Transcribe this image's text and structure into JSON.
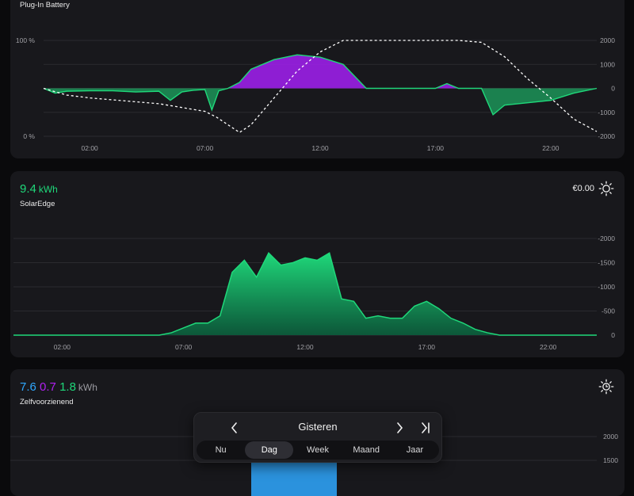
{
  "battery": {
    "title": "Plug-In Battery",
    "left_ticks": [
      "100 %",
      "0 %"
    ],
    "right_ticks": [
      "2000",
      "1000",
      "0",
      "-1000",
      "-2000"
    ],
    "x_ticks": [
      "02:00",
      "07:00",
      "12:00",
      "17:00",
      "22:00"
    ],
    "colors": {
      "discharge": "#9b1fe8",
      "charge": "#1fd87a",
      "soc": "#ffffff"
    }
  },
  "solar": {
    "value": "9.4",
    "unit": "kWh",
    "name": "SolarEdge",
    "price": "€0.00",
    "icon": "sun-icon",
    "right_ticks": [
      "-2000",
      "-1500",
      "-1000",
      "-500",
      "0"
    ],
    "x_ticks": [
      "02:00",
      "07:00",
      "12:00",
      "17:00",
      "22:00"
    ],
    "color": "#1fd87a"
  },
  "self": {
    "values": [
      "7.6",
      "0.7",
      "1.8"
    ],
    "value_colors": [
      "#2fa8ff",
      "#b020f0",
      "#1fd87a"
    ],
    "unit": "kWh",
    "name": "Zelfvoorzienend",
    "icon": "sun-clock-icon",
    "right_ticks": [
      "2000",
      "1500"
    ]
  },
  "nav": {
    "label": "Gisteren",
    "tabs": [
      "Nu",
      "Dag",
      "Week",
      "Maand",
      "Jaar"
    ],
    "active_tab": "Dag"
  },
  "chart_data": [
    {
      "type": "area",
      "title": "Plug-In Battery",
      "x_range": [
        "00:00",
        "24:00"
      ],
      "y_left_range": [
        0,
        100
      ],
      "y_right_range": [
        -2000,
        2000
      ],
      "series": [
        {
          "x": [
            0,
            1,
            2,
            3,
            4,
            5,
            6,
            6.5,
            7,
            7.5,
            8,
            8.5,
            9,
            10,
            11,
            12,
            13,
            14,
            15,
            16,
            17,
            18,
            19,
            20,
            21,
            22,
            23,
            24
          ],
          "values": [
            50,
            43,
            40,
            38,
            36,
            34,
            30,
            28,
            26,
            20,
            12,
            4,
            12,
            40,
            68,
            88,
            100,
            100,
            100,
            100,
            100,
            100,
            98,
            83,
            60,
            40,
            18,
            5
          ]
        },
        {
          "x": [
            0,
            0.5,
            1,
            2,
            3,
            4,
            5,
            5.5,
            6,
            6.5,
            7,
            7.3,
            7.6,
            8,
            8.5,
            9,
            10,
            11,
            12,
            13,
            14,
            15,
            16,
            17,
            17.5,
            18,
            19,
            19.5,
            20,
            21,
            22,
            23,
            24
          ],
          "values": [
            0,
            -200,
            -120,
            -100,
            -100,
            -150,
            -120,
            -500,
            -150,
            -80,
            -50,
            -900,
            -100,
            0,
            250,
            800,
            1200,
            1400,
            1300,
            1000,
            0,
            0,
            0,
            0,
            200,
            0,
            0,
            -1100,
            -700,
            -600,
            -500,
            -200,
            0
          ]
        }
      ]
    },
    {
      "type": "area",
      "title": "SolarEdge",
      "x_range": [
        "00:00",
        "24:00"
      ],
      "y_range": [
        -2000,
        0
      ],
      "series": [
        {
          "x": [
            0,
            6,
            6.5,
            7,
            7.5,
            8,
            8.5,
            9,
            9.5,
            10,
            10.5,
            11,
            11.5,
            12,
            12.5,
            13,
            13.5,
            14,
            14.5,
            15,
            15.5,
            16,
            16.5,
            17,
            17.5,
            18,
            18.5,
            19,
            19.5,
            20,
            24
          ],
          "values": [
            0,
            0,
            -50,
            -150,
            -250,
            -250,
            -400,
            -1300,
            -1550,
            -1200,
            -1700,
            -1450,
            -1500,
            -1600,
            -1550,
            -1700,
            -750,
            -700,
            -350,
            -400,
            -350,
            -350,
            -600,
            -700,
            -550,
            -350,
            -250,
            -120,
            -50,
            0,
            0
          ]
        }
      ]
    }
  ]
}
